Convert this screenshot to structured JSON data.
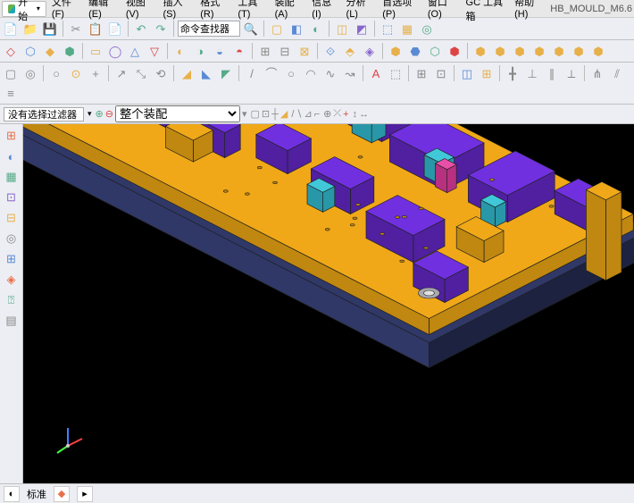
{
  "app": {
    "doc_name": "HB_MOULD_M6.6"
  },
  "menu": {
    "start": "开始",
    "items": [
      "文件(F)",
      "编辑(E)",
      "视图(V)",
      "插入(S)",
      "格式(R)",
      "工具(T)",
      "装配(A)",
      "信息(I)",
      "分析(L)",
      "首选项(P)",
      "窗口(O)",
      "GC 工具箱",
      "帮助(H)"
    ]
  },
  "toolbars": {
    "row1": [
      {
        "icon": "📄",
        "c": "#888"
      },
      {
        "icon": "📁",
        "c": "#e8b04a"
      },
      {
        "icon": "💾",
        "c": "#5a8"
      },
      {
        "sep": true
      },
      {
        "icon": "✂",
        "c": "#888"
      },
      {
        "icon": "📋",
        "c": "#888"
      },
      {
        "icon": "📄",
        "c": "#888"
      },
      {
        "sep": true
      },
      {
        "icon": "↶",
        "c": "#5a8"
      },
      {
        "icon": "↷",
        "c": "#5a8"
      },
      {
        "sep": true
      },
      {
        "label": "命令查找器",
        "type": "text",
        "w": 70
      },
      {
        "icon": "🔍",
        "c": "#888"
      },
      {
        "sep": true
      },
      {
        "icon": "▢",
        "c": "#e8b04a"
      },
      {
        "icon": "◧",
        "c": "#5a8ad4"
      },
      {
        "icon": "◐",
        "c": "#5a8"
      },
      {
        "sep": true
      },
      {
        "icon": "◫",
        "c": "#e8b04a"
      },
      {
        "icon": "◩",
        "c": "#8866cc"
      },
      {
        "sep": true
      },
      {
        "icon": "⬚",
        "c": "#5a8ad4"
      },
      {
        "icon": "▦",
        "c": "#e8b04a"
      },
      {
        "icon": "◎",
        "c": "#5a8"
      }
    ],
    "row2": [
      {
        "icon": "◇",
        "c": "#d44"
      },
      {
        "icon": "⬡",
        "c": "#5a8ad4"
      },
      {
        "icon": "◆",
        "c": "#e8b04a"
      },
      {
        "icon": "⬢",
        "c": "#5a8"
      },
      {
        "sep": true
      },
      {
        "icon": "▭",
        "c": "#e8b04a"
      },
      {
        "icon": "◯",
        "c": "#8866cc"
      },
      {
        "icon": "△",
        "c": "#5a8ad4"
      },
      {
        "icon": "▽",
        "c": "#d44"
      },
      {
        "sep": true
      },
      {
        "icon": "◐",
        "c": "#e8b04a"
      },
      {
        "icon": "◑",
        "c": "#5a8"
      },
      {
        "icon": "◒",
        "c": "#5a8ad4"
      },
      {
        "icon": "◓",
        "c": "#d44"
      },
      {
        "sep": true
      },
      {
        "icon": "⊞",
        "c": "#888"
      },
      {
        "icon": "⊟",
        "c": "#888"
      },
      {
        "icon": "⊠",
        "c": "#e8b04a"
      },
      {
        "sep": true
      },
      {
        "icon": "⟐",
        "c": "#5a8ad4"
      },
      {
        "icon": "⬘",
        "c": "#e8b04a"
      },
      {
        "icon": "◈",
        "c": "#8866cc"
      },
      {
        "sep": true
      },
      {
        "icon": "⬢",
        "c": "#e8b04a"
      },
      {
        "icon": "⬣",
        "c": "#5a8ad4"
      },
      {
        "icon": "⬡",
        "c": "#5a8"
      },
      {
        "icon": "⬢",
        "c": "#d44"
      },
      {
        "sep": true
      },
      {
        "icon": "⬢",
        "c": "#e8b04a"
      },
      {
        "icon": "⬢",
        "c": "#e8b04a"
      },
      {
        "icon": "⬢",
        "c": "#e8b04a"
      },
      {
        "icon": "⬢",
        "c": "#e8b04a"
      },
      {
        "icon": "⬢",
        "c": "#e8b04a"
      },
      {
        "icon": "⬢",
        "c": "#e8b04a"
      },
      {
        "icon": "⬢",
        "c": "#e8b04a"
      }
    ],
    "row3": [
      {
        "icon": "▢",
        "c": "#888"
      },
      {
        "icon": "◎",
        "c": "#888"
      },
      {
        "sep": true
      },
      {
        "icon": "○",
        "c": "#888"
      },
      {
        "icon": "⊙",
        "c": "#e8b04a"
      },
      {
        "icon": "+",
        "c": "#888"
      },
      {
        "sep": true
      },
      {
        "icon": "↗",
        "c": "#888"
      },
      {
        "icon": "⤡",
        "c": "#888"
      },
      {
        "icon": "⟲",
        "c": "#888"
      },
      {
        "sep": true
      },
      {
        "icon": "◢",
        "c": "#e8b04a"
      },
      {
        "icon": "◣",
        "c": "#5a8ad4"
      },
      {
        "icon": "◤",
        "c": "#5a8"
      },
      {
        "sep": true
      },
      {
        "icon": "/",
        "c": "#888"
      },
      {
        "icon": "⌒",
        "c": "#888"
      },
      {
        "icon": "○",
        "c": "#888"
      },
      {
        "icon": "◠",
        "c": "#888"
      },
      {
        "icon": "∿",
        "c": "#888"
      },
      {
        "icon": "↝",
        "c": "#888"
      },
      {
        "sep": true
      },
      {
        "icon": "A",
        "c": "#d44"
      },
      {
        "icon": "⬚",
        "c": "#888"
      },
      {
        "sep": true
      },
      {
        "icon": "⊞",
        "c": "#888"
      },
      {
        "icon": "⊡",
        "c": "#888"
      },
      {
        "sep": true
      },
      {
        "icon": "◫",
        "c": "#5a8ad4"
      },
      {
        "icon": "⊞",
        "c": "#e8b04a"
      },
      {
        "sep": true
      },
      {
        "icon": "╋",
        "c": "#888"
      },
      {
        "icon": "⊥",
        "c": "#888"
      },
      {
        "icon": "∥",
        "c": "#888"
      },
      {
        "icon": "⟂",
        "c": "#888"
      },
      {
        "sep": true
      },
      {
        "icon": "⋔",
        "c": "#888"
      },
      {
        "icon": "⫽",
        "c": "#888"
      },
      {
        "icon": "≡",
        "c": "#888"
      }
    ],
    "row4": [
      {
        "icon": "⊕",
        "c": "#5a8"
      },
      {
        "icon": "⊖",
        "c": "#d44"
      },
      {
        "type": "combo",
        "w": 140,
        "text": "整个装配"
      },
      {
        "icon": "▾",
        "c": "#888"
      },
      {
        "sep": true
      },
      {
        "icon": "▢",
        "c": "#888"
      },
      {
        "icon": "⊡",
        "c": "#888"
      },
      {
        "icon": "┼",
        "c": "#888"
      },
      {
        "icon": "◢",
        "c": "#e8b04a"
      },
      {
        "sep": true
      },
      {
        "icon": "/",
        "c": "#888"
      },
      {
        "icon": "∖",
        "c": "#888"
      },
      {
        "icon": "⊿",
        "c": "#888"
      },
      {
        "icon": "⌐",
        "c": "#888"
      },
      {
        "sep": true
      },
      {
        "icon": "⊕",
        "c": "#888"
      },
      {
        "icon": "⤫",
        "c": "#888"
      },
      {
        "icon": "+",
        "c": "#d44"
      },
      {
        "sep": true
      },
      {
        "icon": "↕",
        "c": "#888"
      },
      {
        "icon": "↔",
        "c": "#888"
      }
    ]
  },
  "filter": {
    "label": "没有选择过滤器",
    "input_width": 70
  },
  "left_tools": [
    {
      "icon": "⊞",
      "c": "#e8704a"
    },
    {
      "icon": "◐",
      "c": "#5a8ad4"
    },
    {
      "icon": "▦",
      "c": "#5a8"
    },
    {
      "icon": "⊡",
      "c": "#8866cc"
    },
    {
      "icon": "⊟",
      "c": "#e8b04a"
    },
    {
      "icon": "◎",
      "c": "#888"
    },
    {
      "icon": "⊞",
      "c": "#5a8ad4"
    },
    {
      "icon": "◈",
      "c": "#e8704a"
    },
    {
      "icon": "⍰",
      "c": "#5a8"
    },
    {
      "icon": "▤",
      "c": "#888"
    }
  ],
  "status": {
    "std_label": "标准"
  },
  "model": {
    "plate_color": "#f0a818",
    "plate_dark": "#c08810",
    "base_color": "#303868",
    "base_dark": "#1c2240",
    "comp_purple": "#7030e0",
    "comp_purple_dark": "#5020a0",
    "comp_cyan": "#40c8d8",
    "comp_pink": "#e850a8",
    "comp_gray": "#a8a8b0",
    "edge": "#202020"
  }
}
